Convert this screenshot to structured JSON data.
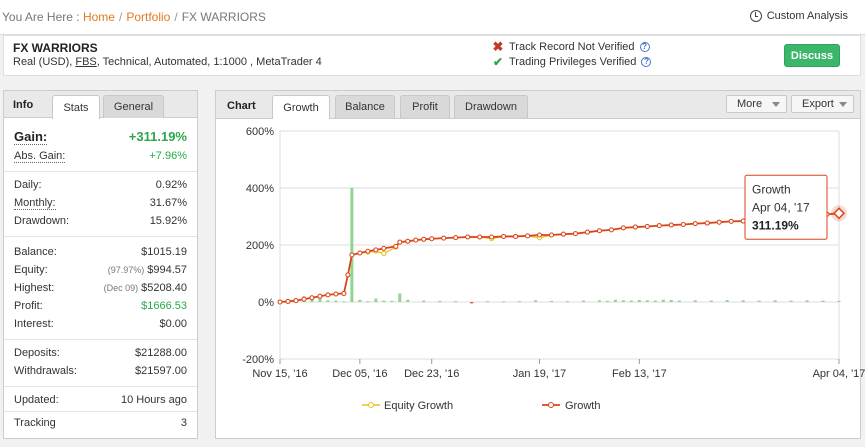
{
  "breadcrumb": {
    "prefix": "You Are Here :",
    "home": "Home",
    "portfolio": "Portfolio",
    "current": "FX WARRIORS"
  },
  "custom_analysis": "Custom Analysis",
  "system": {
    "name": "FX WARRIORS",
    "desc_prefix": "Real (USD), ",
    "broker": "FBS",
    "desc_suffix": ", Technical, Automated, 1:1000 , MetaTrader 4",
    "track_record": "Track Record Not Verified",
    "privileges": "Trading Privileges Verified",
    "discuss": "Discuss"
  },
  "left_tabs": {
    "title": "Info",
    "stats": "Stats",
    "general": "General"
  },
  "stats": {
    "gain_label": "Gain:",
    "gain": "+311.19%",
    "abs_gain_label": "Abs. Gain:",
    "abs_gain": "+7.96%",
    "daily_label": "Daily:",
    "daily": "0.92%",
    "monthly_label": "Monthly:",
    "monthly": "31.67%",
    "drawdown_label": "Drawdown:",
    "drawdown": "15.92%",
    "balance_label": "Balance:",
    "balance": "$1015.19",
    "equity_label": "Equity:",
    "equity_pct": "(97.97%)",
    "equity": "$994.57",
    "highest_label": "Highest:",
    "highest_date": "(Dec 09)",
    "highest": "$5208.40",
    "profit_label": "Profit:",
    "profit": "$1666.53",
    "interest_label": "Interest:",
    "interest": "$0.00",
    "deposits_label": "Deposits:",
    "deposits": "$21288.00",
    "withdrawals_label": "Withdrawals:",
    "withdrawals": "$21597.00",
    "updated_label": "Updated:",
    "updated": "10 Hours ago",
    "tracking_label": "Tracking",
    "tracking": "3"
  },
  "chart_tabs": {
    "title": "Chart",
    "growth": "Growth",
    "balance": "Balance",
    "profit": "Profit",
    "drawdown": "Drawdown",
    "more": "More",
    "export": "Export"
  },
  "colors": {
    "growth": "#d9441c",
    "equity": "#e8c21a",
    "bar_pos": "#7ccf7c",
    "bar_neg": "#d9441c",
    "accent": "#e07a1f",
    "discuss": "#3cb66b"
  },
  "chart_data": {
    "type": "line",
    "ylim": [
      -200,
      600
    ],
    "yticks": [
      "600%",
      "400%",
      "200%",
      "0%",
      "-200%"
    ],
    "yvalues": [
      600,
      400,
      200,
      0,
      -200
    ],
    "xticks": [
      "Nov 15, '16",
      "Dec 05, '16",
      "Dec 23, '16",
      "Jan 19, '17",
      "Feb 13, '17",
      "Apr 04, '17"
    ],
    "xtick_days": [
      0,
      20,
      38,
      65,
      90,
      140
    ],
    "series": [
      {
        "name": "Growth",
        "days": [
          0,
          2,
          4,
          6,
          8,
          10,
          12,
          14,
          16,
          17,
          18,
          20,
          22,
          24,
          26,
          29,
          30,
          32,
          34,
          36,
          38,
          41,
          44,
          47,
          50,
          53,
          56,
          59,
          62,
          65,
          68,
          71,
          74,
          77,
          80,
          83,
          86,
          89,
          92,
          95,
          98,
          101,
          104,
          107,
          110,
          113,
          116,
          119,
          122,
          125,
          128,
          131,
          134,
          137,
          140
        ],
        "values": [
          0,
          2,
          5,
          10,
          15,
          20,
          25,
          28,
          30,
          95,
          165,
          172,
          178,
          183,
          188,
          195,
          210,
          213,
          217,
          220,
          222,
          224,
          226,
          228,
          228,
          228,
          230,
          230,
          232,
          235,
          235,
          238,
          240,
          245,
          250,
          253,
          260,
          263,
          265,
          268,
          270,
          272,
          275,
          277,
          280,
          283,
          284,
          286,
          289,
          292,
          296,
          300,
          304,
          308,
          311.19
        ]
      },
      {
        "name": "Equity Growth",
        "days": [
          0,
          2,
          4,
          6,
          8,
          10,
          12,
          14,
          16,
          17,
          18,
          20,
          22,
          24,
          26,
          29,
          30,
          32,
          34,
          36,
          38,
          41,
          44,
          47,
          50,
          53,
          56,
          59,
          62,
          65,
          68,
          71,
          74,
          77,
          80,
          83,
          86,
          89,
          92,
          95,
          98,
          101,
          104,
          107,
          110,
          113,
          116,
          119,
          122,
          125,
          128,
          131,
          134,
          137,
          140
        ],
        "values": [
          0,
          2,
          5,
          10,
          15,
          20,
          25,
          28,
          30,
          95,
          165,
          172,
          175,
          178,
          170,
          192,
          210,
          213,
          217,
          220,
          222,
          224,
          226,
          228,
          228,
          222,
          230,
          230,
          232,
          225,
          235,
          238,
          240,
          245,
          250,
          253,
          260,
          263,
          265,
          268,
          270,
          272,
          275,
          277,
          280,
          283,
          284,
          286,
          289,
          292,
          296,
          300,
          304,
          308,
          308
        ]
      }
    ],
    "bars": {
      "days": [
        0,
        2,
        4,
        6,
        8,
        10,
        12,
        14,
        16,
        18,
        20,
        22,
        24,
        26,
        28,
        30,
        32,
        36,
        40,
        44,
        48,
        52,
        56,
        60,
        64,
        68,
        72,
        76,
        80,
        82,
        84,
        86,
        88,
        90,
        92,
        94,
        96,
        98,
        100,
        104,
        108,
        112,
        116,
        120,
        124,
        128,
        132,
        136,
        140
      ],
      "values": [
        2,
        3,
        10,
        20,
        15,
        18,
        6,
        5,
        2,
        400,
        8,
        3,
        12,
        5,
        4,
        30,
        8,
        5,
        4,
        3,
        -5,
        3,
        2,
        3,
        6,
        4,
        3,
        5,
        6,
        4,
        8,
        6,
        5,
        7,
        6,
        5,
        8,
        7,
        5,
        6,
        5,
        7,
        6,
        5,
        6,
        5,
        6,
        5,
        4
      ]
    },
    "tooltip": {
      "title": "Growth",
      "date": "Apr 04, '17",
      "value": "311.19%"
    },
    "legend": [
      "Equity Growth",
      "Growth"
    ],
    "legend_position": "bottom"
  }
}
